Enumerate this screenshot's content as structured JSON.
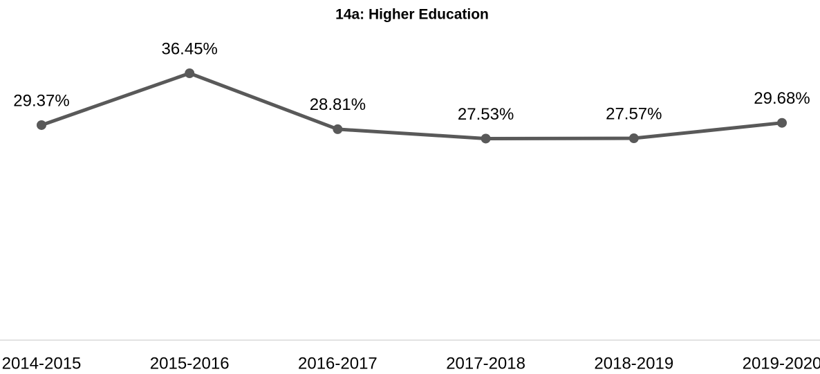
{
  "chart_data": {
    "type": "line",
    "title": "14a: Higher Education",
    "categories": [
      "2014-2015",
      "2015-2016",
      "2016-2017",
      "2017-2018",
      "2018-2019",
      "2019-2020"
    ],
    "series": [
      {
        "name": "Higher Education",
        "color": "#595959",
        "values": [
          29.37,
          36.45,
          28.81,
          27.53,
          27.57,
          29.68
        ],
        "value_labels": [
          "29.37%",
          "36.45%",
          "28.81%",
          "27.53%",
          "27.57%",
          "29.68%"
        ]
      }
    ],
    "ylim": [
      0,
      40
    ]
  }
}
